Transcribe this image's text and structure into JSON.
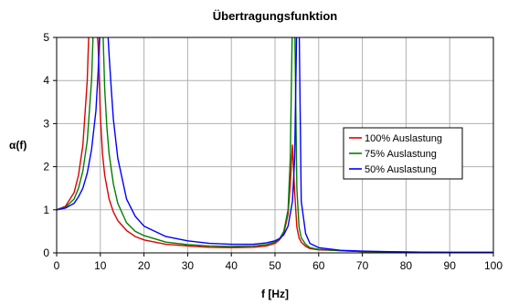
{
  "chart_data": {
    "type": "line",
    "title": "Übertragungsfunktion",
    "xlabel": "f [Hz]",
    "ylabel": "α(f)",
    "xlim": [
      0,
      100
    ],
    "ylim": [
      0,
      5
    ],
    "xticks": [
      "0",
      "10",
      "20",
      "30",
      "40",
      "50",
      "60",
      "70",
      "80",
      "90",
      "100"
    ],
    "yticks": [
      "0",
      "1",
      "2",
      "3",
      "4",
      "5"
    ],
    "grid": true,
    "legend_position": "right",
    "series": [
      {
        "name": "100% Auslastung",
        "color": "#e00000",
        "x": [
          0,
          2,
          4,
          5,
          6,
          7,
          7.5,
          8,
          8.5,
          9,
          9.5,
          10,
          10.5,
          11,
          12,
          13,
          14,
          16,
          18,
          20,
          25,
          30,
          35,
          40,
          45,
          48,
          50,
          51,
          52,
          53,
          53.5,
          54,
          54.5,
          55,
          55.5,
          56,
          57,
          58,
          60,
          65,
          70,
          80,
          90,
          100
        ],
        "y": [
          1.0,
          1.08,
          1.4,
          1.8,
          2.5,
          4.0,
          5.5,
          5.5,
          5.5,
          5.5,
          4.8,
          3.2,
          2.3,
          1.8,
          1.25,
          0.95,
          0.75,
          0.52,
          0.38,
          0.3,
          0.2,
          0.16,
          0.13,
          0.12,
          0.13,
          0.16,
          0.22,
          0.3,
          0.45,
          0.9,
          1.6,
          2.5,
          1.4,
          0.6,
          0.35,
          0.25,
          0.15,
          0.1,
          0.07,
          0.05,
          0.03,
          0.02,
          0.01,
          0.01
        ]
      },
      {
        "name": "75% Auslastung",
        "color": "#008000",
        "x": [
          0,
          2,
          4,
          5,
          6,
          7,
          8,
          8.5,
          9,
          9.5,
          10,
          10.5,
          11,
          11.5,
          12,
          13,
          14,
          16,
          18,
          20,
          25,
          30,
          35,
          40,
          45,
          48,
          50,
          51,
          52,
          53,
          53.5,
          54,
          54.5,
          55,
          55.5,
          56,
          57,
          58,
          60,
          65,
          70,
          80,
          90,
          100
        ],
        "y": [
          1.0,
          1.06,
          1.25,
          1.5,
          1.9,
          2.6,
          4.0,
          5.5,
          5.5,
          5.5,
          5.5,
          5.5,
          3.8,
          2.9,
          2.3,
          1.6,
          1.15,
          0.7,
          0.5,
          0.4,
          0.25,
          0.19,
          0.16,
          0.15,
          0.16,
          0.19,
          0.25,
          0.32,
          0.5,
          1.0,
          2.2,
          5.5,
          5.5,
          1.5,
          0.6,
          0.35,
          0.2,
          0.12,
          0.08,
          0.05,
          0.03,
          0.02,
          0.01,
          0.01
        ]
      },
      {
        "name": "50% Auslastung",
        "color": "#0000ff",
        "x": [
          0,
          2,
          4,
          5,
          6,
          7,
          8,
          9,
          9.5,
          10,
          10.5,
          11,
          11.5,
          12,
          12.5,
          13,
          14,
          16,
          18,
          20,
          25,
          30,
          35,
          40,
          45,
          48,
          50,
          51,
          52,
          53,
          54,
          54.5,
          55,
          55.5,
          56,
          57,
          58,
          60,
          65,
          70,
          80,
          90,
          100
        ],
        "y": [
          1.0,
          1.04,
          1.15,
          1.3,
          1.5,
          1.85,
          2.4,
          3.3,
          4.2,
          5.5,
          5.5,
          5.5,
          5.5,
          4.6,
          3.8,
          3.1,
          2.2,
          1.25,
          0.85,
          0.62,
          0.38,
          0.28,
          0.22,
          0.2,
          0.2,
          0.23,
          0.28,
          0.33,
          0.42,
          0.62,
          1.2,
          2.2,
          5.5,
          5.5,
          1.2,
          0.45,
          0.22,
          0.12,
          0.06,
          0.04,
          0.02,
          0.01,
          0.01
        ]
      }
    ]
  }
}
